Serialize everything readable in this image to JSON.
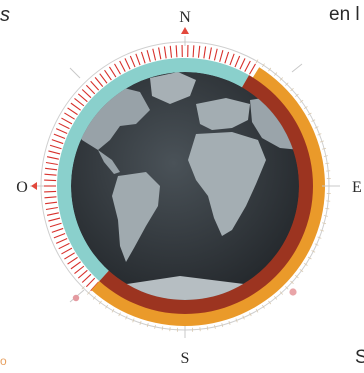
{
  "compass": {
    "north": "N",
    "south": "S",
    "west": "O",
    "east": "E"
  },
  "fragments": {
    "top_left": "s",
    "top_right": "en l",
    "bottom_right": "S",
    "bottom_left": "o"
  },
  "colors": {
    "ocean": "#2e3338",
    "land": "#9aa4aa",
    "daylight_ring": "#8ad0cc",
    "night_ring": "#9c3420",
    "outer_orange": "#ea9a2a",
    "red_ticks": "#d7312c",
    "pointer": "#e2483c"
  }
}
